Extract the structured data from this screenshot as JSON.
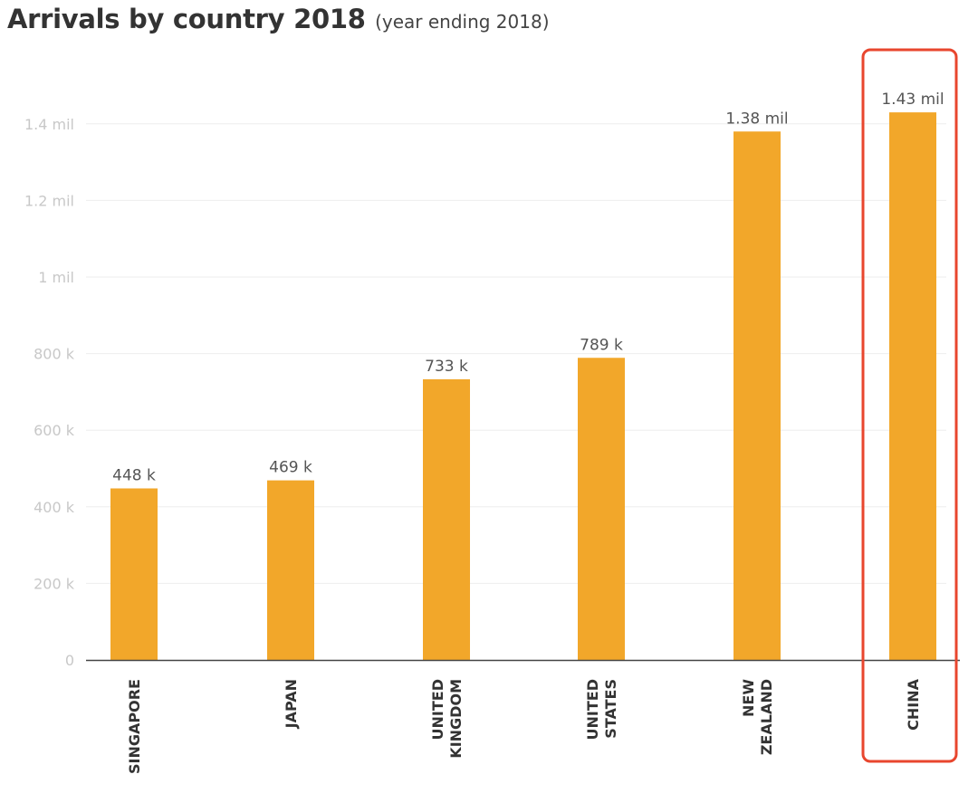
{
  "chart_data": {
    "type": "bar",
    "title": "Arrivals by country 2018",
    "subtitle": "(year ending 2018)",
    "categories": [
      "SINGAPORE",
      "JAPAN",
      "UNITED KINGDOM",
      "UNITED STATES",
      "NEW ZEALAND",
      "CHINA"
    ],
    "category_lines": [
      [
        "SINGAPORE"
      ],
      [
        "JAPAN"
      ],
      [
        "UNITED",
        "KINGDOM"
      ],
      [
        "UNITED",
        "STATES"
      ],
      [
        "NEW",
        "ZEALAND"
      ],
      [
        "CHINA"
      ]
    ],
    "values": [
      448000,
      469000,
      733000,
      789000,
      1380000,
      1430000
    ],
    "data_labels": [
      "448 k",
      "469 k",
      "733 k",
      "789 k",
      "1.38 mil",
      "1.43 mil"
    ],
    "ylim": [
      0,
      1400000
    ],
    "yticks": [
      0,
      200000,
      400000,
      600000,
      800000,
      1000000,
      1200000,
      1400000
    ],
    "ytick_labels": [
      "0",
      "200 k",
      "400 k",
      "600 k",
      "800 k",
      "1 mil",
      "1.2 mil",
      "1.4 mil"
    ],
    "xlabel": "",
    "ylabel": "",
    "grid": true,
    "highlighted_category": "CHINA",
    "colors": {
      "bar": "#F2A72A",
      "highlight_box": "#E8462E",
      "grid": "#EEEEEE",
      "axis": "#444444",
      "tick_label": "#C8C8C8",
      "data_label": "#555555",
      "category_label": "#333333"
    }
  }
}
